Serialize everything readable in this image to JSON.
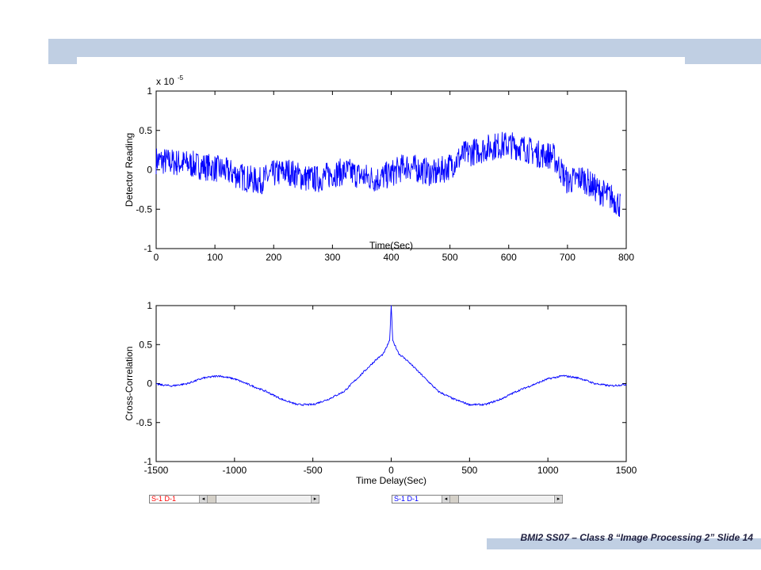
{
  "footer": {
    "text": "BMI2 SS07 – Class 8 “Image Processing 2” Slide 14"
  },
  "scrollbars": [
    {
      "label": "S-1  D-1",
      "color": "#ff0000",
      "thumb": 0.05
    },
    {
      "label": "S-1  D-1",
      "color": "#0000ff",
      "thumb": 0.05
    }
  ],
  "chart_data": [
    {
      "type": "line",
      "xlabel": "Time(Sec)",
      "ylabel": "Detector Reading",
      "exponent_label": "x 10",
      "exponent_power": "-5",
      "xlim": [
        0,
        800
      ],
      "ylim": [
        -1,
        1
      ],
      "xticks": [
        0,
        100,
        200,
        300,
        400,
        500,
        600,
        700,
        800
      ],
      "yticks": [
        -1,
        -0.5,
        0,
        0.5,
        1
      ],
      "grid": false,
      "series": [
        {
          "color": "#0000ff",
          "x": [
            0,
            25,
            50,
            75,
            100,
            125,
            150,
            175,
            200,
            225,
            250,
            275,
            300,
            325,
            350,
            375,
            400,
            425,
            450,
            475,
            500,
            525,
            550,
            575,
            600,
            625,
            650,
            675,
            700,
            725,
            750,
            775,
            790
          ],
          "y": [
            0.12,
            0.1,
            0.08,
            0.05,
            0.02,
            -0.03,
            -0.1,
            -0.15,
            -0.05,
            -0.02,
            -0.1,
            -0.12,
            -0.05,
            -0.02,
            -0.08,
            -0.12,
            -0.05,
            0.05,
            0.0,
            -0.05,
            0.05,
            0.2,
            0.25,
            0.3,
            0.32,
            0.28,
            0.2,
            0.18,
            -0.15,
            -0.1,
            -0.25,
            -0.35,
            -0.45
          ]
        }
      ]
    },
    {
      "type": "line",
      "xlabel": "Time Delay(Sec)",
      "ylabel": "Cross-Correlation",
      "xlim": [
        -1500,
        1500
      ],
      "ylim": [
        -1,
        1
      ],
      "xticks": [
        -1500,
        -1000,
        -500,
        0,
        500,
        1000,
        1500
      ],
      "yticks": [
        -1,
        -0.5,
        0,
        0.5,
        1
      ],
      "grid": false,
      "series": [
        {
          "color": "#0000ff",
          "x": [
            -1500,
            -1400,
            -1300,
            -1200,
            -1100,
            -1000,
            -900,
            -800,
            -700,
            -600,
            -500,
            -400,
            -300,
            -200,
            -100,
            -50,
            -10,
            0,
            10,
            50,
            100,
            200,
            300,
            400,
            500,
            600,
            700,
            800,
            900,
            1000,
            1100,
            1200,
            1300,
            1400,
            1500
          ],
          "y": [
            -0.01,
            -0.03,
            0.0,
            0.07,
            0.1,
            0.06,
            -0.02,
            -0.1,
            -0.2,
            -0.27,
            -0.27,
            -0.2,
            -0.1,
            0.1,
            0.3,
            0.38,
            0.55,
            1.0,
            0.55,
            0.38,
            0.3,
            0.1,
            -0.1,
            -0.2,
            -0.27,
            -0.27,
            -0.2,
            -0.1,
            -0.02,
            0.06,
            0.1,
            0.07,
            0.0,
            -0.03,
            -0.01
          ]
        }
      ]
    }
  ]
}
